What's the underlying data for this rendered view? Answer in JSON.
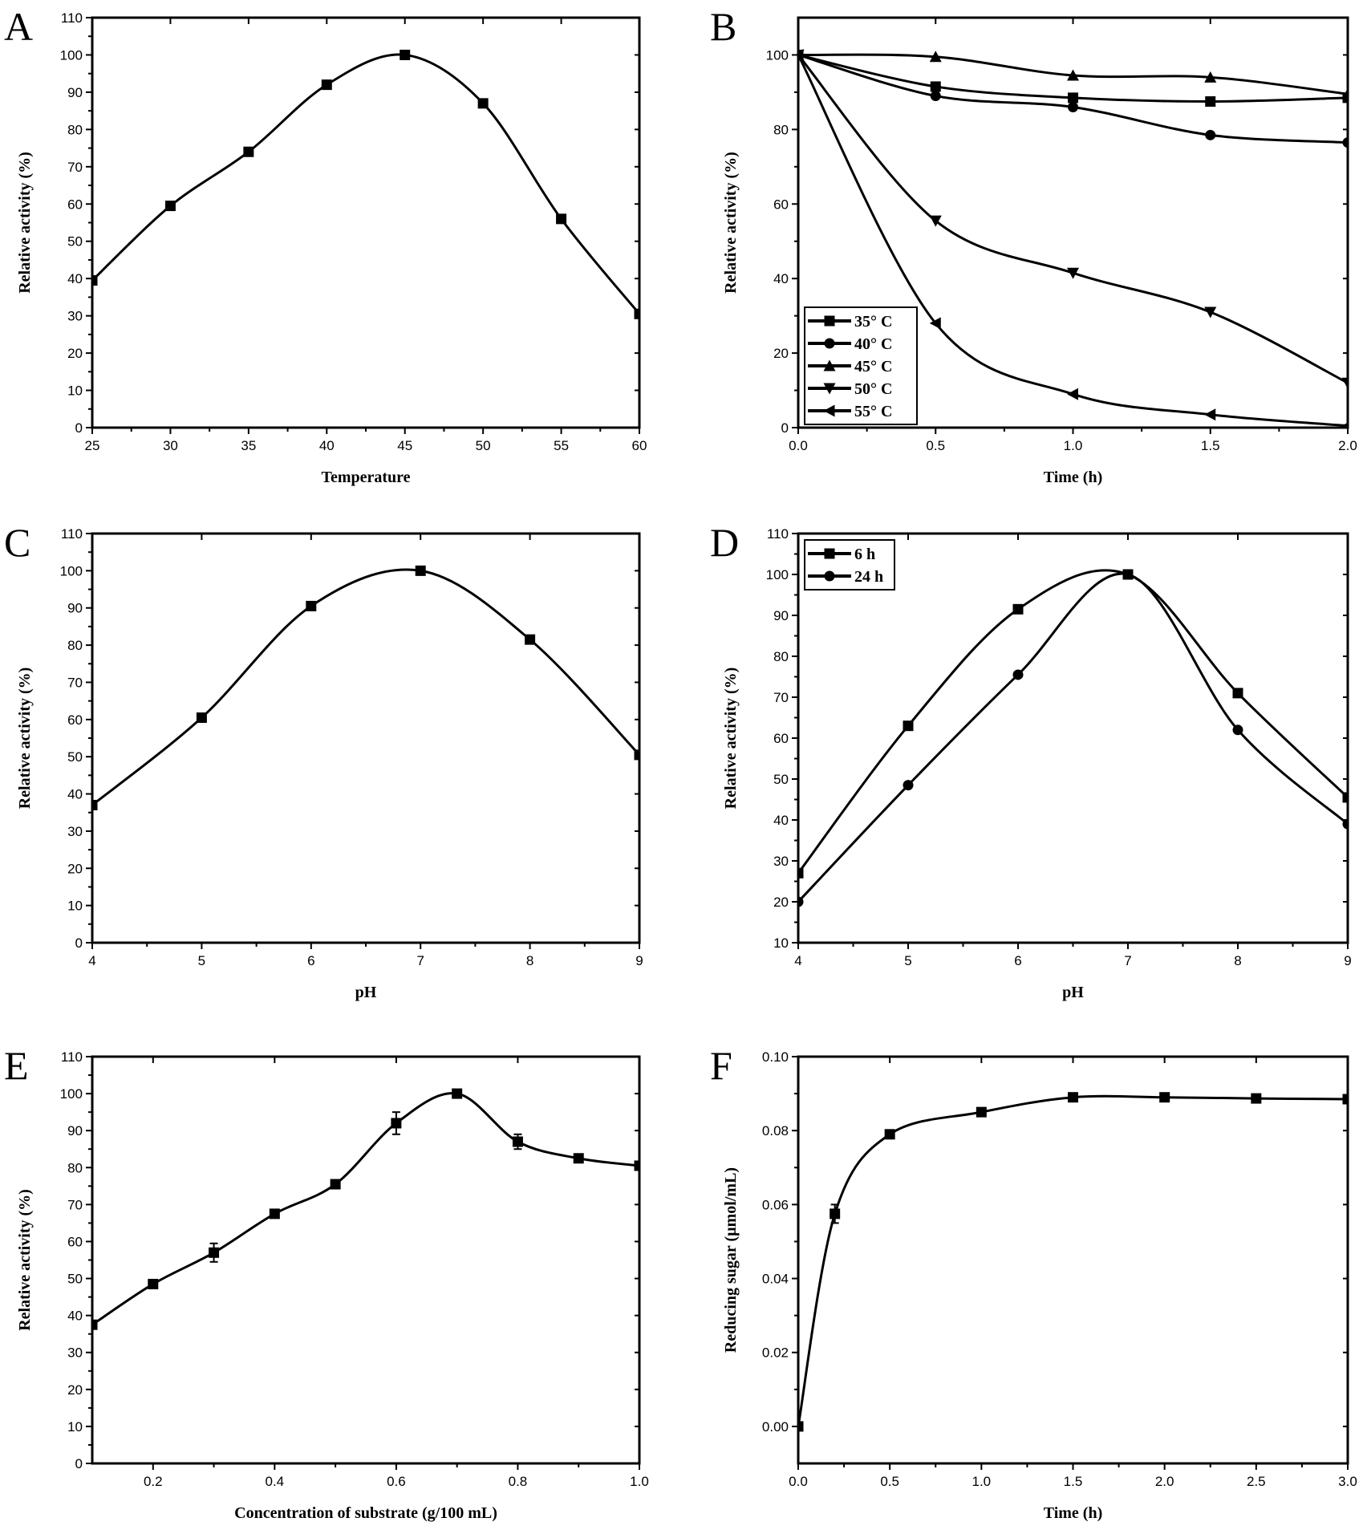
{
  "colors": {
    "ink": "#000000",
    "background": "#ffffff"
  },
  "chart_data": [
    {
      "panel": "A",
      "type": "line",
      "xlabel": "Temperature",
      "ylabel": "Relative activity (%)",
      "xlim": [
        25,
        60
      ],
      "ylim": [
        0,
        110
      ],
      "xticks": [
        "25",
        "30",
        "35",
        "40",
        "45",
        "50",
        "55",
        "60"
      ],
      "yticks": [
        "0",
        "10",
        "20",
        "30",
        "40",
        "50",
        "60",
        "70",
        "80",
        "90",
        "100",
        "110"
      ],
      "series": [
        {
          "name": "",
          "marker": "square",
          "x": [
            25,
            30,
            35,
            40,
            45,
            50,
            55,
            60
          ],
          "values": [
            39.5,
            59.5,
            74,
            92,
            100,
            87,
            56,
            30.5
          ]
        }
      ],
      "legend": null
    },
    {
      "panel": "B",
      "type": "line",
      "xlabel": "Time (h)",
      "ylabel": "Relative activity (%)",
      "xlim": [
        0,
        2
      ],
      "ylim": [
        0,
        110
      ],
      "xticks": [
        "0.0",
        "0.5",
        "1.0",
        "1.5",
        "2.0"
      ],
      "yticks": [
        "0",
        "20",
        "40",
        "60",
        "80",
        "100"
      ],
      "series": [
        {
          "name": "35° C",
          "marker": "square",
          "x": [
            0,
            0.5,
            1,
            1.5,
            2
          ],
          "values": [
            100,
            91.5,
            88.5,
            87.5,
            88.5
          ]
        },
        {
          "name": "40° C",
          "marker": "circle",
          "x": [
            0,
            0.5,
            1,
            1.5,
            2
          ],
          "values": [
            100,
            89,
            86,
            78.5,
            76.5
          ]
        },
        {
          "name": "45° C",
          "marker": "triangle-up",
          "x": [
            0,
            0.5,
            1,
            1.5,
            2
          ],
          "values": [
            100,
            99.5,
            94.5,
            94,
            89.5
          ]
        },
        {
          "name": "50° C",
          "marker": "triangle-down",
          "x": [
            0,
            0.5,
            1,
            1.5,
            2
          ],
          "values": [
            100,
            55.5,
            41.5,
            31,
            12
          ]
        },
        {
          "name": "55° C",
          "marker": "triangle-left",
          "x": [
            0,
            0.5,
            1,
            1.5,
            2
          ],
          "values": [
            100,
            28,
            9,
            3.5,
            0.5
          ]
        }
      ],
      "legend": "bottom-left"
    },
    {
      "panel": "C",
      "type": "line",
      "xlabel": "pH",
      "ylabel": "Relative activity (%)",
      "xlim": [
        4,
        9
      ],
      "ylim": [
        0,
        110
      ],
      "xticks": [
        "4",
        "5",
        "6",
        "7",
        "8",
        "9"
      ],
      "yticks": [
        "0",
        "10",
        "20",
        "30",
        "40",
        "50",
        "60",
        "70",
        "80",
        "90",
        "100",
        "110"
      ],
      "series": [
        {
          "name": "",
          "marker": "square",
          "x": [
            4,
            5,
            6,
            7,
            8,
            9
          ],
          "values": [
            37,
            60.5,
            90.5,
            100,
            81.5,
            50.5
          ]
        }
      ],
      "legend": null
    },
    {
      "panel": "D",
      "type": "line",
      "xlabel": "pH",
      "ylabel": "Relative activity (%)",
      "xlim": [
        4,
        9
      ],
      "ylim": [
        10,
        110
      ],
      "xticks": [
        "4",
        "5",
        "6",
        "7",
        "8",
        "9"
      ],
      "yticks": [
        "10",
        "20",
        "30",
        "40",
        "50",
        "60",
        "70",
        "80",
        "90",
        "100",
        "110"
      ],
      "series": [
        {
          "name": "6 h",
          "marker": "square",
          "x": [
            4,
            5,
            6,
            7,
            8,
            9
          ],
          "values": [
            27,
            63,
            91.5,
            100,
            71,
            45.5
          ]
        },
        {
          "name": "24 h",
          "marker": "circle",
          "x": [
            4,
            5,
            6,
            7,
            8,
            9
          ],
          "values": [
            20,
            48.5,
            75.5,
            100,
            62,
            39
          ]
        }
      ],
      "legend": "top-left"
    },
    {
      "panel": "E",
      "type": "line",
      "xlabel": "Concentration of substrate (g/100 mL)",
      "ylabel": "Relative activity (%)",
      "xlim": [
        0.1,
        1.0
      ],
      "ylim": [
        0,
        110
      ],
      "xticks": [
        "0.2",
        "0.4",
        "0.6",
        "0.8",
        "1.0"
      ],
      "yticks": [
        "0",
        "10",
        "20",
        "30",
        "40",
        "50",
        "60",
        "70",
        "80",
        "90",
        "100",
        "110"
      ],
      "series": [
        {
          "name": "",
          "marker": "square",
          "x": [
            0.1,
            0.2,
            0.3,
            0.4,
            0.5,
            0.6,
            0.7,
            0.8,
            0.9,
            1.0
          ],
          "values": [
            37.5,
            48.5,
            57,
            67.5,
            75.5,
            92,
            100,
            87,
            82.5,
            80.5
          ],
          "errors": [
            0,
            0,
            2.5,
            0,
            0,
            3,
            0,
            2,
            0,
            0
          ]
        }
      ],
      "legend": null
    },
    {
      "panel": "F",
      "type": "line",
      "xlabel": "Time (h)",
      "ylabel": "Reducing sugar (µmol/mL)",
      "xlim": [
        0,
        3
      ],
      "ylim": [
        -0.01,
        0.1
      ],
      "xticks": [
        "0.0",
        "0.5",
        "1.0",
        "1.5",
        "2.0",
        "2.5",
        "3.0"
      ],
      "yticks": [
        "0.00",
        "0.02",
        "0.04",
        "0.06",
        "0.08",
        "0.10"
      ],
      "series": [
        {
          "name": "",
          "marker": "square",
          "x": [
            0,
            0.2,
            0.5,
            1,
            1.5,
            2,
            2.5,
            3
          ],
          "values": [
            0,
            0.0575,
            0.079,
            0.085,
            0.089,
            0.089,
            0.0887,
            0.0885
          ],
          "errors": [
            0,
            0.0025,
            0,
            0,
            0,
            0,
            0,
            0
          ]
        }
      ],
      "legend": null
    }
  ]
}
